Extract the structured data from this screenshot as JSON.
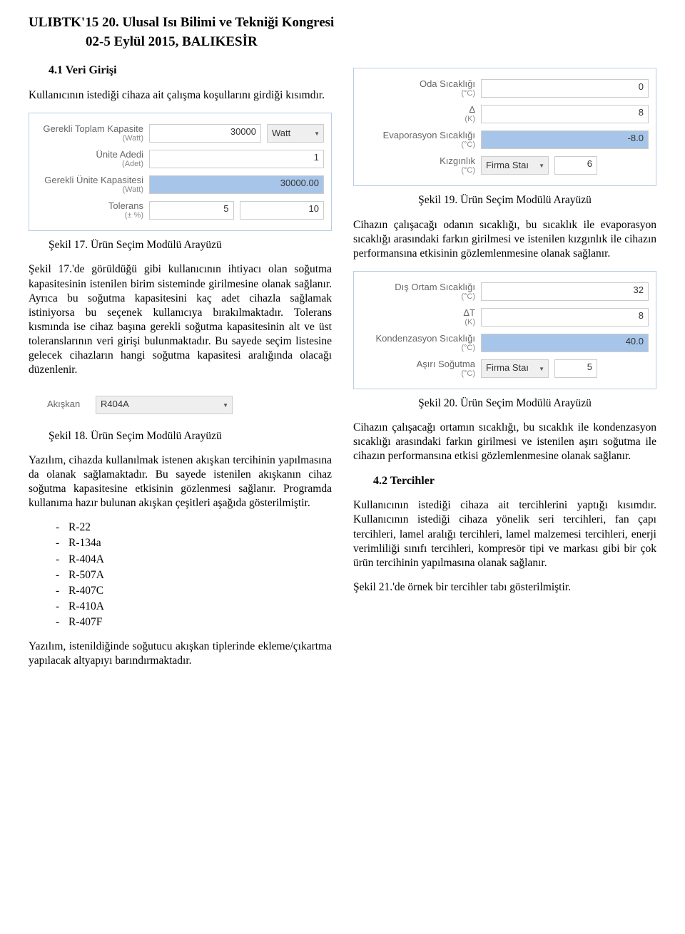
{
  "header": {
    "title": "ULIBTK'15 20. Ulusal Isı Bilimi ve Tekniği Kongresi",
    "sub": "02-5 Eylül 2015, BALIKESİR"
  },
  "left": {
    "section_41_title": "4.1 Veri Girişi",
    "intro": "Kullanıcının istediği cihaza ait çalışma koşullarını girdiği kısımdır.",
    "fig17": {
      "rows": {
        "r1_label": "Gerekli Toplam Kapasite",
        "r1_sub": "(Watt)",
        "r1_val": "30000",
        "r1_unit_sel": "Watt",
        "r2_label": "Ünite Adedi",
        "r2_sub": "(Adet)",
        "r2_val": "1",
        "r3_label": "Gerekli Ünite Kapasitesi",
        "r3_sub": "(Watt)",
        "r3_val": "30000.00",
        "r4_label": "Tolerans",
        "r4_sub": "(± %)",
        "r4_val_a": "5",
        "r4_val_b": "10"
      },
      "caption": "Şekil 17. Ürün Seçim Modülü Arayüzü"
    },
    "para_after17": "Şekil 17.'de görüldüğü gibi kullanıcının ihtiyacı olan soğutma kapasitesinin istenilen birim sisteminde girilmesine olanak sağlanır. Ayrıca bu soğutma kapasitesini kaç adet cihazla sağlamak istiniyorsa bu seçenek kullanıcıya bırakılmaktadır. Tolerans kısmında ise cihaz başına gerekli soğutma kapasitesinin alt ve üst toleranslarının veri girişi bulunmaktadır. Bu sayede seçim listesine gelecek cihazların hangi soğutma kapasitesi aralığında olacağı düzenlenir.",
    "fig18": {
      "label": "Akışkan",
      "value": "R404A",
      "caption": "Şekil 18. Ürün Seçim Modülü Arayüzü"
    },
    "para_after18": "Yazılım, cihazda kullanılmak istenen akışkan tercihinin yapılmasına da olanak sağlamaktadır. Bu sayede istenilen akışkanın cihaz soğutma kapasitesine etkisinin gözlenmesi sağlanır. Programda kullanıma hazır bulunan akışkan çeşitleri aşağıda gösterilmiştir.",
    "refrigerants": [
      "R-22",
      "R-134a",
      "R-404A",
      "R-507A",
      "R-407C",
      "R-410A",
      "R-407F"
    ],
    "para_bottom": "Yazılım, istenildiğinde soğutucu akışkan tiplerinde ekleme/çıkartma yapılacak altyapıyı barındırmaktadır."
  },
  "right": {
    "fig19": {
      "rows": {
        "r1_label": "Oda Sıcaklığı",
        "r1_sub": "(°C)",
        "r1_val": "0",
        "r2_label": "Δ",
        "r2_sub": "(K)",
        "r2_val": "8",
        "r3_label": "Evaporasyon Sıcaklığı",
        "r3_sub": "(°C)",
        "r3_val": "-8.0",
        "r4_label": "Kızgınlık",
        "r4_sub": "(°C)",
        "r4_sel": "Firma Staı",
        "r4_val": "6"
      },
      "caption": "Şekil 19. Ürün Seçim Modülü Arayüzü"
    },
    "para_after19": "Cihazın çalışacağı odanın sıcaklığı, bu sıcaklık ile evaporasyon sıcaklığı arasındaki farkın girilmesi ve istenilen kızgınlık ile cihazın performansına etkisinin gözlemlenmesine olanak sağlanır.",
    "fig20": {
      "rows": {
        "r1_label": "Dış Ortam Sıcaklığı",
        "r1_sub": "(°C)",
        "r1_val": "32",
        "r2_label": "ΔT",
        "r2_sub": "(K)",
        "r2_val": "8",
        "r3_label": "Kondenzasyon Sıcaklığı",
        "r3_sub": "(°C)",
        "r3_val": "40.0",
        "r4_label": "Aşırı Soğutma",
        "r4_sub": "(°C)",
        "r4_sel": "Firma Staı",
        "r4_val": "5"
      },
      "caption": "Şekil 20. Ürün Seçim Modülü Arayüzü"
    },
    "para_after20": "Cihazın çalışacağı ortamın sıcaklığı, bu sıcaklık ile kondenzasyon sıcaklığı arasındaki farkın girilmesi ve istenilen aşırı soğutma ile cihazın performansına etkisi gözlemlenmesine olanak sağlanır.",
    "section_42_title": "4.2 Tercihler",
    "para_42": "Kullanıcının istediği cihaza ait tercihlerini yaptığı kısımdır. Kullanıcının istediği cihaza yönelik seri tercihleri, fan çapı tercihleri, lamel aralığı tercihleri, lamel malzemesi tercihleri, enerji verimliliği sınıfı tercihleri, kompresör tipi ve markası gibi bir çok ürün tercihinin yapılmasına olanak sağlanır.",
    "para_42b": "Şekil 21.'de örnek bir tercihler tabı gösterilmiştir."
  },
  "colors": {
    "form_border": "#b8cce4",
    "highlight": "#a7c5e8",
    "input_border": "#cccccc",
    "label_text": "#666666"
  }
}
